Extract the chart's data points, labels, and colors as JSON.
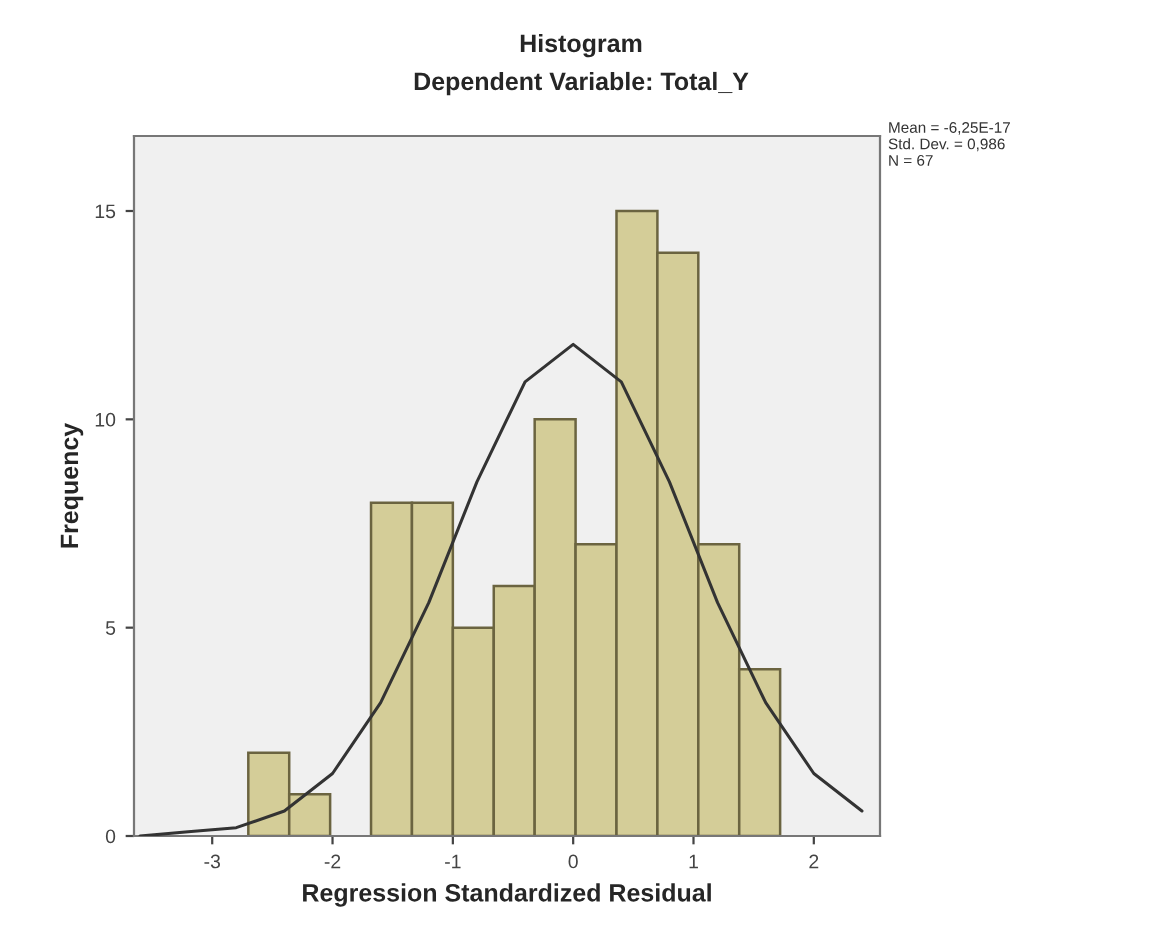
{
  "chart_data": {
    "type": "histogram",
    "title": "Histogram",
    "subtitle": "Dependent Variable: Total_Y",
    "xlabel": "Regression Standardized Residual",
    "ylabel": "Frequency",
    "annotations": [
      "Mean = -6,25E-17\nStd. Dev. = 0,986\nN = 67"
    ],
    "xlim": [
      -3.65,
      2.55
    ],
    "ylim": [
      0,
      16.8
    ],
    "xticks": [
      -3,
      -2,
      -1,
      0,
      1,
      2
    ],
    "yticks": [
      0,
      5,
      10,
      15
    ],
    "grid": false,
    "series": [
      {
        "color": "#d4cd98",
        "bins": [
          -2.7,
          -2.36,
          -2.02,
          -1.68,
          -1.34,
          -1.0,
          -0.66,
          -0.32,
          0.02,
          0.36,
          0.7,
          1.04,
          1.38,
          1.72
        ],
        "values": [
          2,
          1,
          0,
          8,
          8,
          5,
          6,
          10,
          7,
          15,
          14,
          7,
          4
        ]
      },
      {
        "type": "line",
        "color": "#333333",
        "x": [
          -3.6,
          -3.2,
          -2.8,
          -2.4,
          -2.0,
          -1.6,
          -1.2,
          -0.8,
          -0.4,
          0,
          0.4,
          0.8,
          1.2,
          1.6,
          2.0,
          2.4
        ],
        "values": [
          0.0,
          0.1,
          0.2,
          0.6,
          1.5,
          3.2,
          5.6,
          8.5,
          10.9,
          11.8,
          10.9,
          8.5,
          5.6,
          3.2,
          1.5,
          0.6
        ]
      }
    ]
  }
}
